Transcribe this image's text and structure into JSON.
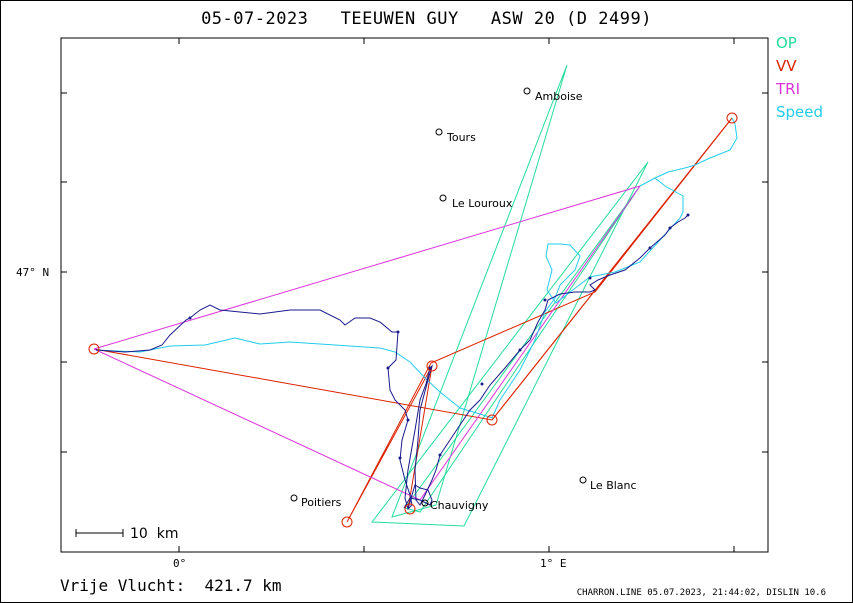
{
  "title": "05-07-2023   TEEUWEN GUY   ASW 20 (D 2499)",
  "legend": [
    {
      "label": "OP",
      "color": "#22dd99"
    },
    {
      "label": "VV",
      "color": "#dd2200"
    },
    {
      "label": "TRI",
      "color": "#dd33dd"
    },
    {
      "label": "Speed",
      "color": "#22ccee"
    }
  ],
  "axes": {
    "x_ticks": [
      {
        "label": "0°"
      },
      {
        "label": "1° E"
      }
    ],
    "y_ticks": [
      {
        "label": "47° N"
      }
    ]
  },
  "towns": [
    {
      "name": "Amboise"
    },
    {
      "name": "Tours"
    },
    {
      "name": "Le Louroux"
    },
    {
      "name": "Poitiers"
    },
    {
      "name": "Chauvigny"
    },
    {
      "name": "Le Blanc"
    }
  ],
  "scale_label": "10  km",
  "footer": {
    "distance": "Vrije Vlucht:  421.7 km",
    "stamp": "CHARRON.LINE 05.07.2023, 21:44:02, DISLIN 10.6"
  },
  "colors": {
    "track": "#1a1a8c",
    "op": "#22dd99",
    "vv": "#dd2200",
    "tri": "#dd33dd",
    "speed": "#22ccee"
  }
}
